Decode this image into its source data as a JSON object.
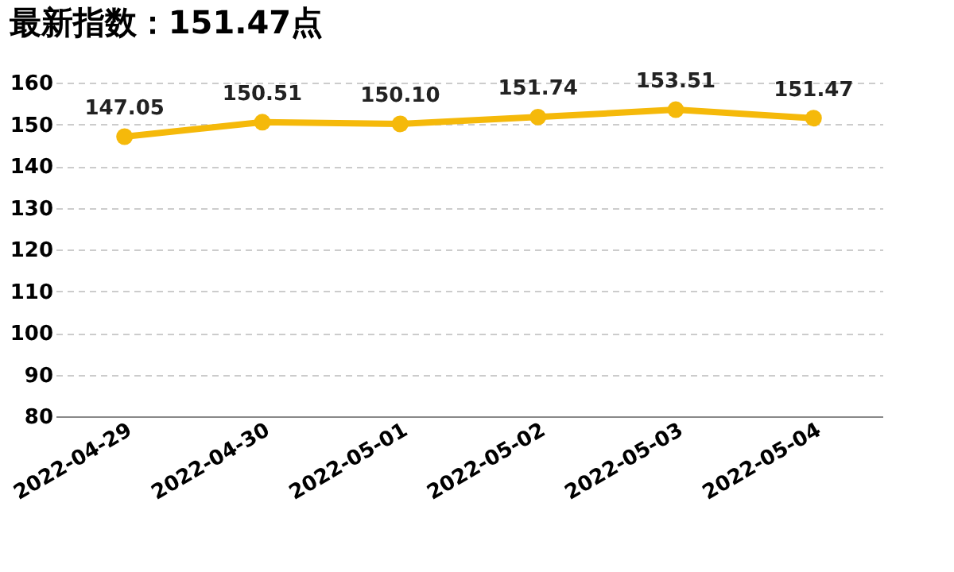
{
  "chart_data": {
    "type": "line",
    "title": "最新指数：151.47点",
    "categories": [
      "2022-04-29",
      "2022-04-30",
      "2022-05-01",
      "2022-05-02",
      "2022-05-03",
      "2022-05-04"
    ],
    "series": [
      {
        "color": "#f5b90a",
        "values": [
          147.05,
          150.51,
          150.1,
          151.74,
          153.51,
          151.47
        ]
      }
    ],
    "ylim": [
      80,
      160
    ],
    "yticks": [
      80,
      90,
      100,
      110,
      120,
      130,
      140,
      150,
      160
    ],
    "value_labels": [
      "147.05",
      "150.51",
      "150.10",
      "151.74",
      "153.51",
      "151.47"
    ],
    "grid": "y",
    "marker": "circle",
    "line_style": "solid"
  }
}
